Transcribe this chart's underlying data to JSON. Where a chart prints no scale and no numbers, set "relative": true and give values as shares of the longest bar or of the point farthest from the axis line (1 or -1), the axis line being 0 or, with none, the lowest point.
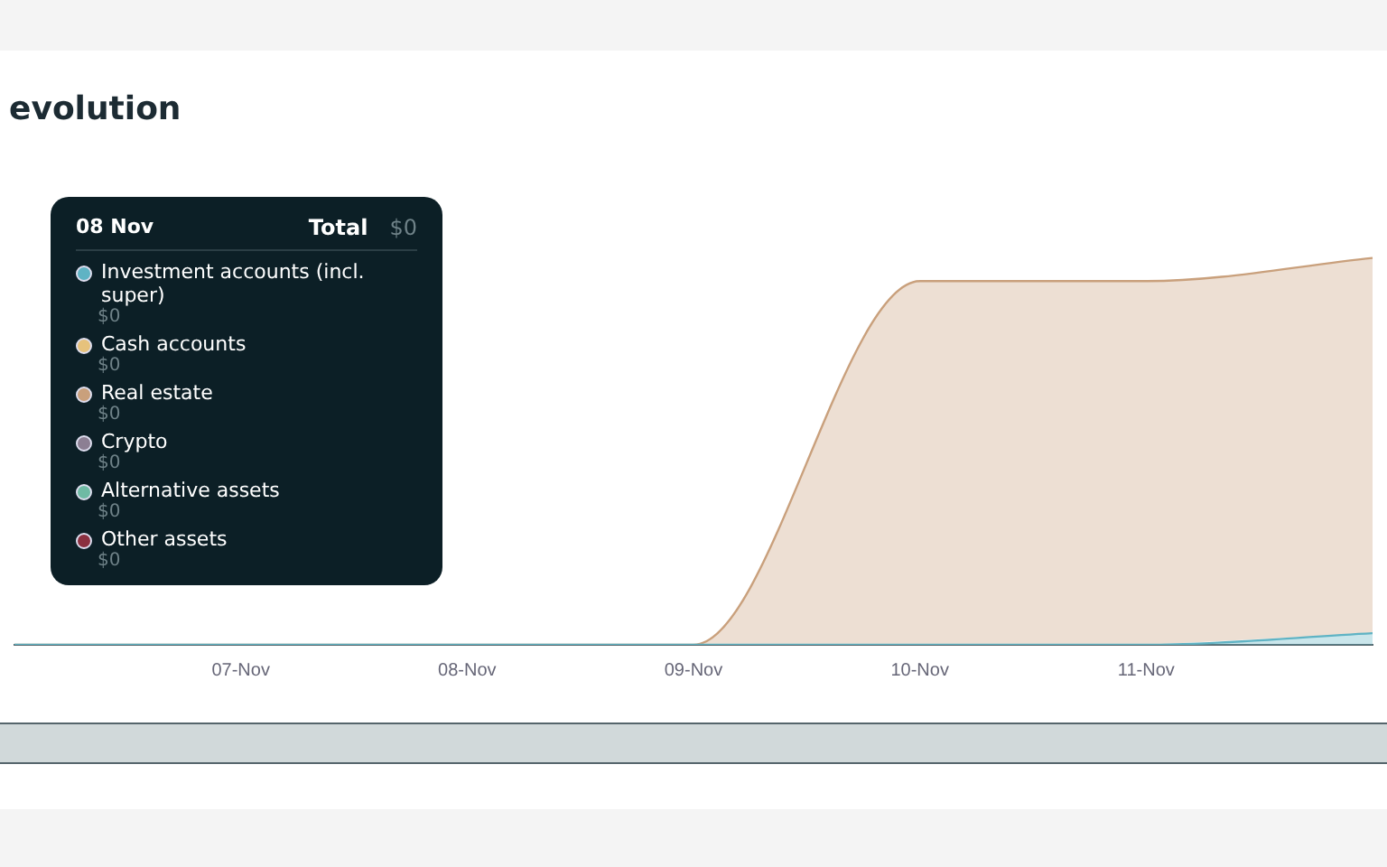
{
  "chart_data": {
    "type": "area",
    "title": "evolution",
    "stacked": true,
    "relative": true,
    "legend": "top left",
    "categories": [
      null,
      "07-Nov",
      "08-Nov",
      "09-Nov",
      "10-Nov",
      "11-Nov",
      null
    ],
    "annotations": [
      "08 Nov",
      "Total",
      "$0",
      "$0",
      "$0",
      "$0",
      "$0",
      "$0",
      "$0"
    ],
    "series": [
      {
        "name": "Investment accounts (incl. super)",
        "color": "#5fb3c4",
        "values": [
          0,
          0,
          0,
          0,
          0,
          0,
          0.03
        ]
      },
      {
        "name": "Cash accounts",
        "color": "#e6c27c",
        "values": [
          null,
          null,
          null,
          null,
          null,
          null,
          null
        ]
      },
      {
        "name": "Real estate",
        "color": "#c9a07c",
        "values": [
          0,
          0,
          0,
          0,
          0.94,
          0.94,
          0.97
        ]
      },
      {
        "name": "Crypto",
        "color": "#8c7f93",
        "values": [
          null,
          null,
          null,
          null,
          null,
          null,
          null
        ]
      },
      {
        "name": "Alternative assets",
        "color": "#6fbaa4",
        "values": [
          null,
          null,
          null,
          null,
          null,
          null,
          null
        ]
      },
      {
        "name": "Other assets",
        "color": "#8b3040",
        "values": [
          null,
          null,
          null,
          null,
          null,
          null,
          null
        ]
      }
    ]
  }
}
